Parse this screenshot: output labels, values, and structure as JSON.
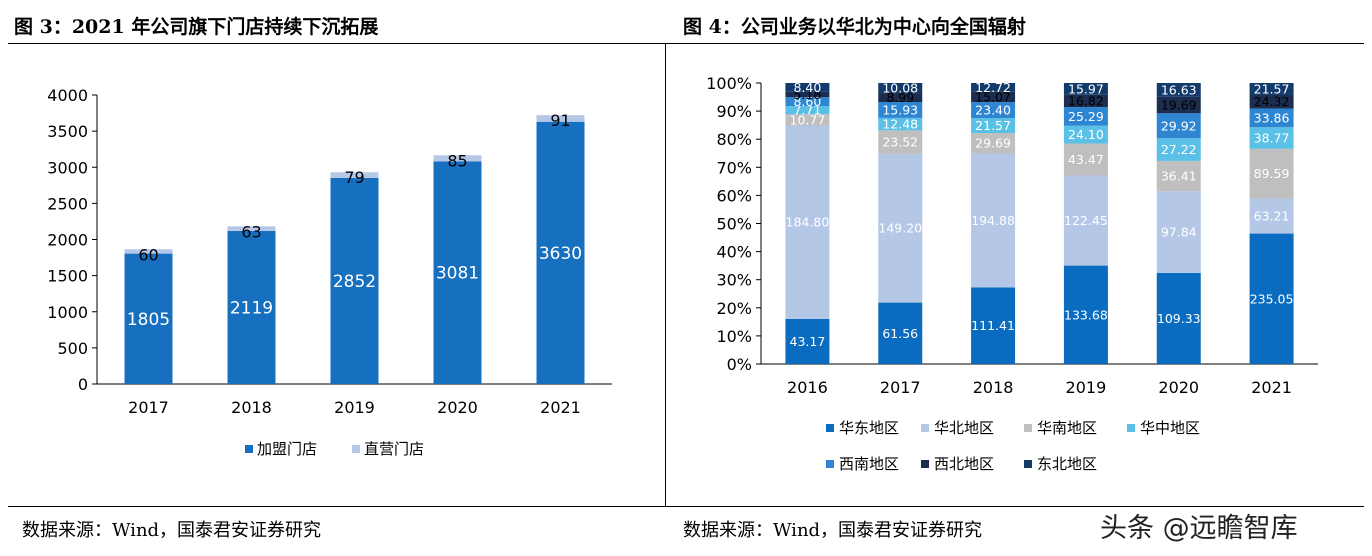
{
  "left_panel": {
    "title": "图 3：2021 年公司旗下门店持续下沉拓展",
    "source": "数据来源：Wind，国泰君安证券研究"
  },
  "right_panel": {
    "title": "图 4：公司业务以华北为中心向全国辐射",
    "source": "数据来源：Wind，国泰君安证券研究"
  },
  "watermark": "头条 @远瞻智库",
  "colors": {
    "franchise": "#1670bf",
    "direct": "#b4c7e7",
    "east": "#0a6cc0",
    "north": "#b4c7e7",
    "south": "#bfbfbf",
    "central": "#5bc0e6",
    "southwest": "#2e86d3",
    "northwest": "#1c2d4f",
    "northeast": "#123b6b"
  },
  "chart_data": [
    {
      "type": "bar",
      "stacked": true,
      "categories": [
        "2017",
        "2018",
        "2019",
        "2020",
        "2021"
      ],
      "series": [
        {
          "name": "加盟门店",
          "values": [
            1805,
            2119,
            2852,
            3081,
            3630
          ]
        },
        {
          "name": "直营门店",
          "values": [
            60,
            63,
            79,
            85,
            91
          ]
        }
      ],
      "yticks": [
        "0",
        "500",
        "1000",
        "1500",
        "2000",
        "2500",
        "3000",
        "3500",
        "4000"
      ],
      "ylim": [
        0,
        4000
      ],
      "legend_position": "bottom"
    },
    {
      "type": "bar",
      "stacked": true,
      "normalized": true,
      "categories": [
        "2016",
        "2017",
        "2018",
        "2019",
        "2020",
        "2021"
      ],
      "series": [
        {
          "name": "华东地区",
          "values": [
            43.17,
            61.56,
            111.41,
            133.68,
            109.33,
            235.05
          ]
        },
        {
          "name": "华北地区",
          "values": [
            184.8,
            149.2,
            194.88,
            122.45,
            97.84,
            63.21
          ]
        },
        {
          "name": "华南地区",
          "values": [
            10.77,
            23.52,
            29.69,
            43.47,
            36.41,
            89.59
          ]
        },
        {
          "name": "华中地区",
          "values": [
            7.71,
            12.48,
            21.57,
            24.1,
            27.22,
            38.77
          ]
        },
        {
          "name": "西南地区",
          "values": [
            8.6,
            15.93,
            23.4,
            25.29,
            29.92,
            33.86
          ]
        },
        {
          "name": "西北地区",
          "values": [
            5.18,
            8.99,
            15.07,
            16.82,
            19.69,
            24.32
          ]
        },
        {
          "name": "东北地区",
          "values": [
            8.4,
            10.08,
            12.72,
            15.97,
            16.63,
            21.57
          ]
        }
      ],
      "yticks": [
        "0%",
        "10%",
        "20%",
        "30%",
        "40%",
        "50%",
        "60%",
        "70%",
        "80%",
        "90%",
        "100%"
      ],
      "ylim": [
        0,
        100
      ],
      "legend_position": "bottom"
    }
  ]
}
